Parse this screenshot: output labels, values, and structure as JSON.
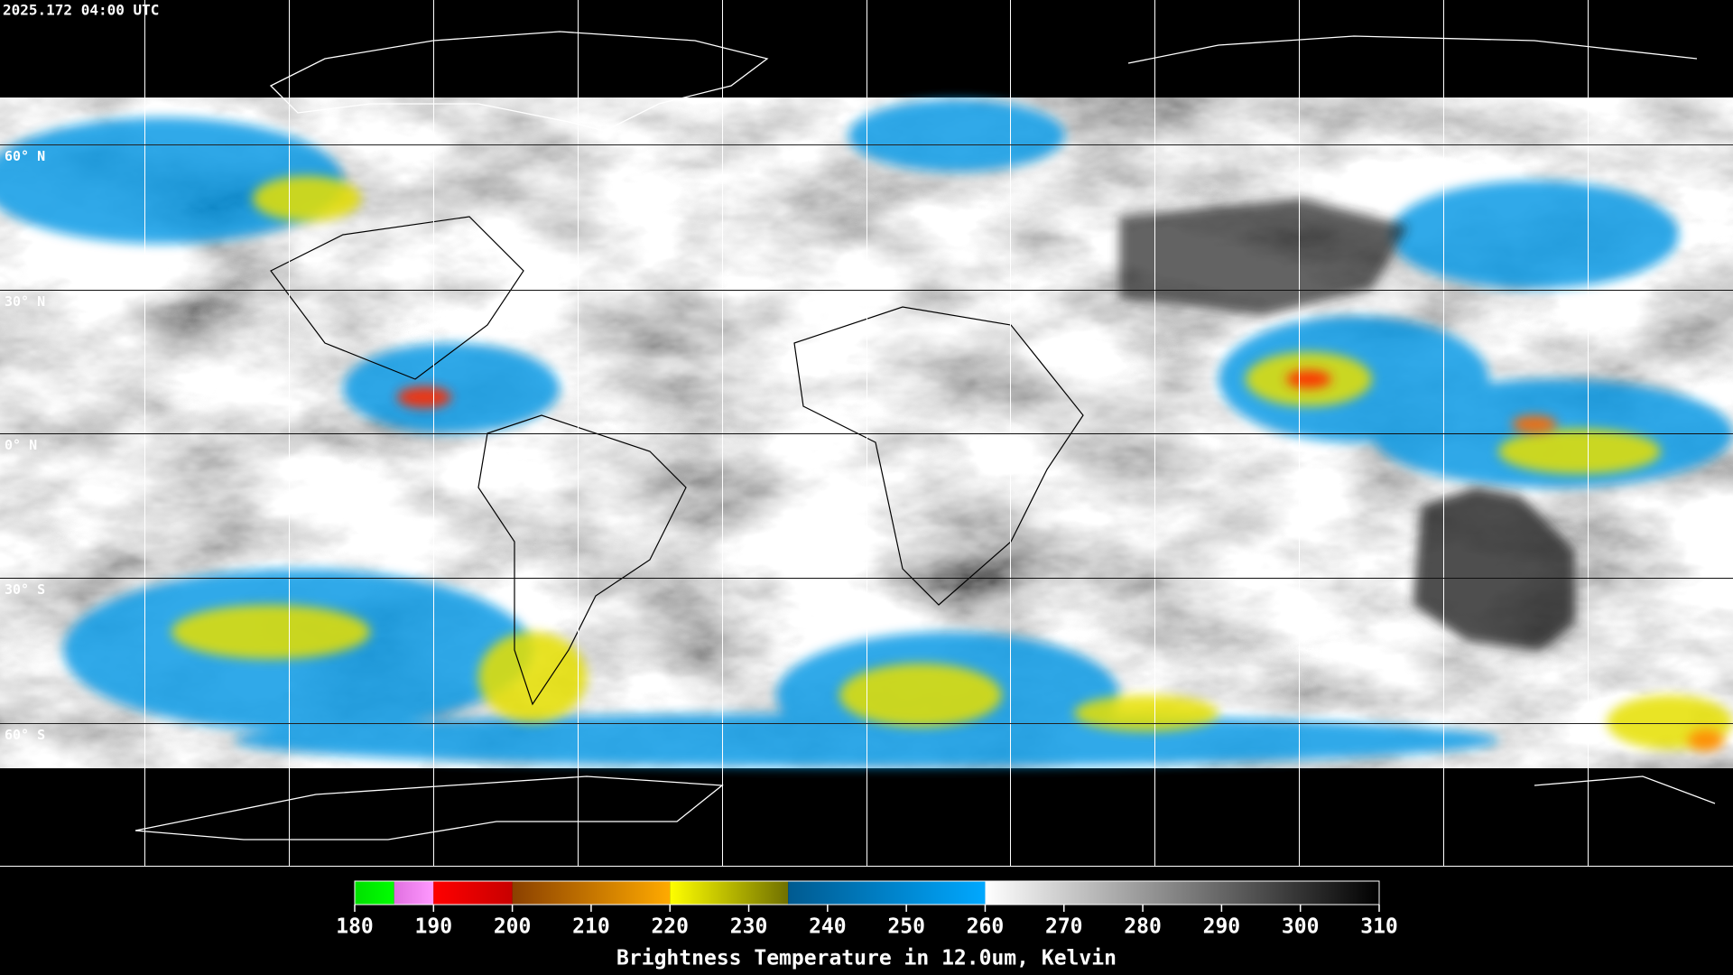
{
  "header": {
    "title": "2025.172 04:00 UTC"
  },
  "map": {
    "latitude_labels": [
      "60° N",
      "30° N",
      "0° N",
      "30° S",
      "60° S"
    ]
  },
  "colorbar": {
    "range": [
      180,
      310
    ],
    "ticks": [
      180,
      190,
      200,
      210,
      220,
      230,
      240,
      250,
      260,
      270,
      280,
      290,
      300,
      310
    ],
    "label": "Brightness Temperature in 12.0um, Kelvin",
    "segments": [
      {
        "from": 180,
        "to": 185,
        "colors": [
          "#00e000",
          "#00ff00"
        ]
      },
      {
        "from": 185,
        "to": 190,
        "colors": [
          "#e070e0",
          "#ff99ff"
        ]
      },
      {
        "from": 190,
        "to": 200,
        "colors": [
          "#ff0000",
          "#c80000"
        ]
      },
      {
        "from": 200,
        "to": 220,
        "colors": [
          "#8a4000",
          "#ffaa00"
        ]
      },
      {
        "from": 220,
        "to": 235,
        "colors": [
          "#ffff00",
          "#707000"
        ]
      },
      {
        "from": 235,
        "to": 260,
        "colors": [
          "#005a90",
          "#00a8ff"
        ]
      },
      {
        "from": 260,
        "to": 310,
        "colors": [
          "#ffffff",
          "#000000"
        ]
      }
    ]
  }
}
